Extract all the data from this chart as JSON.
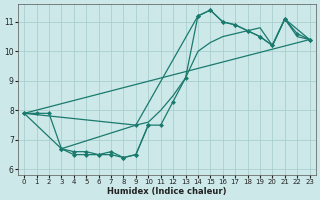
{
  "xlabel": "Humidex (Indice chaleur)",
  "bg_color": "#cce8e8",
  "line_color": "#1a7a6e",
  "grid_color": "#aacfcf",
  "xlim": [
    -0.5,
    23.5
  ],
  "ylim": [
    5.8,
    11.6
  ],
  "xticks": [
    0,
    1,
    2,
    3,
    4,
    5,
    6,
    7,
    8,
    9,
    10,
    11,
    12,
    13,
    14,
    15,
    16,
    17,
    18,
    19,
    20,
    21,
    22,
    23
  ],
  "yticks": [
    6,
    7,
    8,
    9,
    10,
    11
  ],
  "line1_x": [
    0,
    1,
    2,
    3,
    4,
    5,
    6,
    7,
    8,
    9,
    10,
    11,
    12,
    13,
    14,
    15,
    16,
    17,
    18,
    19,
    20,
    21,
    22,
    23
  ],
  "line1_y": [
    7.9,
    7.9,
    7.9,
    6.7,
    6.6,
    6.6,
    6.5,
    6.5,
    6.4,
    6.5,
    7.5,
    7.5,
    8.3,
    9.1,
    11.2,
    11.4,
    11.0,
    10.9,
    10.7,
    10.5,
    10.2,
    11.1,
    10.6,
    10.4
  ],
  "line2_x": [
    0,
    3,
    9,
    14,
    15,
    16,
    17,
    18,
    19,
    20,
    21,
    23
  ],
  "line2_y": [
    7.9,
    6.7,
    7.5,
    11.2,
    11.4,
    11.0,
    10.9,
    10.7,
    10.5,
    10.2,
    11.1,
    10.4
  ],
  "line3_x": [
    0,
    9,
    10,
    11,
    12,
    13,
    14,
    15,
    16,
    17,
    18,
    19,
    20,
    21,
    22,
    23
  ],
  "line3_y": [
    7.9,
    7.5,
    7.6,
    8.0,
    8.5,
    9.1,
    10.0,
    10.3,
    10.5,
    10.6,
    10.7,
    10.8,
    10.2,
    11.1,
    10.5,
    10.4
  ],
  "line4_x": [
    0,
    23
  ],
  "line4_y": [
    7.9,
    10.4
  ],
  "line5_x": [
    3,
    4,
    5,
    6,
    7,
    8,
    9,
    10
  ],
  "line5_y": [
    6.7,
    6.5,
    6.5,
    6.5,
    6.6,
    6.4,
    6.5,
    7.5
  ]
}
